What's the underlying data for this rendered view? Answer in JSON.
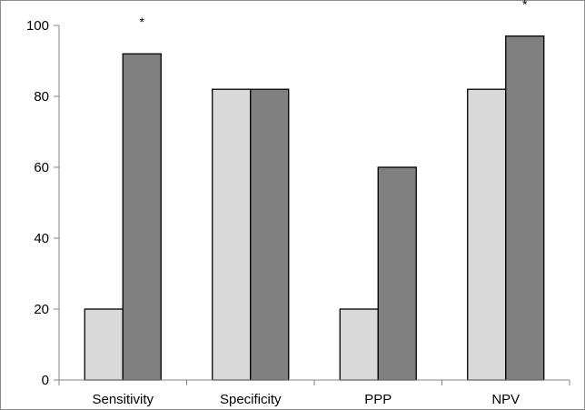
{
  "chart_data": {
    "type": "bar",
    "title": "",
    "xlabel": "",
    "ylabel": "",
    "categories": [
      "Sensitivity",
      "Specificity",
      "PPP",
      "NPV"
    ],
    "series": [
      {
        "values": [
          20,
          82,
          20,
          82
        ],
        "color": "#d9d9d9"
      },
      {
        "values": [
          92,
          82,
          60,
          97
        ],
        "color": "#808080"
      }
    ],
    "ylim": [
      0,
      100
    ],
    "yticks": [
      0,
      20,
      40,
      60,
      80,
      100
    ],
    "grid": false,
    "legend": "none",
    "annotations": [
      {
        "category": "Sensitivity",
        "series": 1,
        "text": "*"
      },
      {
        "category": "NPV",
        "series": 1,
        "text": "*"
      }
    ]
  }
}
